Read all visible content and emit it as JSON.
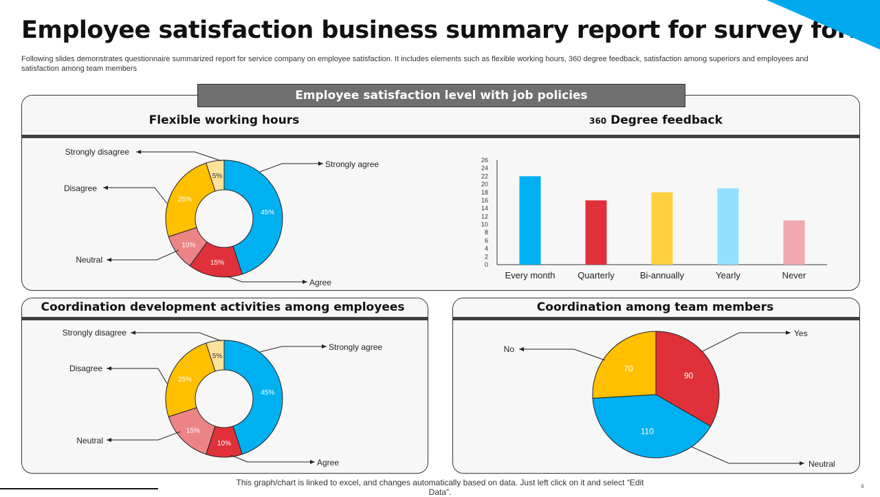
{
  "title": "Employee satisfaction business summary report for survey form",
  "description": "Following slides demonstrates questionnaire summarized report for service company on employee satisfaction. It includes elements such as flexible working hours, 360 degree feedback, satisfaction among superiors and employees and satisfaction among team members",
  "banner": "Employee satisfaction level with job policies",
  "footer": "This graph/chart is linked to excel,  and changes automatically based on data. Just left click on it and select “Edit Data”.",
  "page_number": "4",
  "accent_color": "#00b0f0",
  "chart_data": [
    {
      "type": "pie",
      "variant": "donut",
      "title": "Flexible working hours",
      "categories": [
        "Strongly agree",
        "Agree",
        "Neutral",
        "Disagree",
        "Strongly disagree"
      ],
      "values": [
        45,
        15,
        10,
        25,
        5
      ],
      "labels": [
        "45%",
        "15%",
        "10%",
        "25%",
        "5%"
      ],
      "colors": [
        "#00b0f0",
        "#e0313a",
        "#ec8486",
        "#ffc000",
        "#ffe29a"
      ]
    },
    {
      "type": "bar",
      "title": "360 Degree feedback",
      "title_prefix": "360",
      "title_rest": "Degree feedback",
      "categories": [
        "Every month",
        "Quarterly",
        "Bi-annually",
        "Yearly",
        "Never"
      ],
      "values": [
        22,
        16,
        18,
        19,
        11
      ],
      "colors": [
        "#00b0f0",
        "#e0313a",
        "#ffd040",
        "#92e0ff",
        "#f0aaae"
      ],
      "ylim": [
        0,
        26
      ],
      "yticks": [
        0,
        2,
        4,
        6,
        8,
        10,
        12,
        14,
        16,
        18,
        20,
        22,
        24,
        26
      ],
      "grid": false
    },
    {
      "type": "pie",
      "variant": "donut",
      "title": "Coordination development activities among employees",
      "categories": [
        "Strongly agree",
        "Agree",
        "Neutral",
        "Disagree",
        "Strongly disagree"
      ],
      "values": [
        45,
        10,
        15,
        25,
        5
      ],
      "labels": [
        "45%",
        "10%",
        "15%",
        "25%",
        "5%"
      ],
      "colors": [
        "#00b0f0",
        "#e0313a",
        "#ec8486",
        "#ffc000",
        "#ffe29a"
      ]
    },
    {
      "type": "pie",
      "title": "Coordination among team members",
      "categories": [
        "Yes",
        "Neutral",
        "No"
      ],
      "values": [
        90,
        110,
        70
      ],
      "labels": [
        "90",
        "110",
        "70"
      ],
      "colors": [
        "#e0313a",
        "#00b0f0",
        "#ffc000"
      ]
    }
  ]
}
